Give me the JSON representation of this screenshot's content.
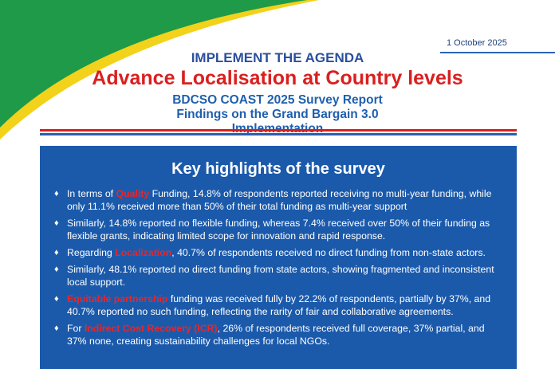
{
  "header": {
    "date": "1 October 2025",
    "kicker": "IMPLEMENT THE AGENDA",
    "title": "Advance Localisation at Country levels",
    "subtitle": "BDCSO COAST 2025 Survey Report Findings on the Grand Bargain 3.0 Implementation"
  },
  "highlights": {
    "title": "Key highlights of the survey",
    "items": [
      {
        "parts": [
          {
            "text": "In terms of "
          },
          {
            "text": "Quality",
            "emphasis": true
          },
          {
            "text": " Funding, 14.8% of respondents reported receiving no multi-year funding, while only 11.1% received more than 50% of their total funding as multi-year support"
          }
        ]
      },
      {
        "parts": [
          {
            "text": "Similarly, 14.8% reported no flexible funding, whereas 7.4% received over 50% of their funding as flexible grants, indicating limited scope for innovation and rapid response."
          }
        ]
      },
      {
        "parts": [
          {
            "text": "Regarding "
          },
          {
            "text": "Localization",
            "emphasis": true
          },
          {
            "text": ", 40.7% of respondents received no direct funding from non-state actors."
          }
        ]
      },
      {
        "parts": [
          {
            "text": "Similarly, 48.1% reported no direct funding from state actors, showing fragmented and inconsistent local support."
          }
        ]
      },
      {
        "parts": [
          {
            "text": "Equitable partnership",
            "emphasis": true
          },
          {
            "text": " funding was received fully by 22.2% of respondents, partially by 37%, and 40.7% reported no such funding, reflecting the rarity of fair and collaborative agreements."
          }
        ]
      },
      {
        "parts": [
          {
            "text": "For "
          },
          {
            "text": "Indirect Cost Recovery (ICR)",
            "emphasis": true
          },
          {
            "text": ", 26% of respondents received full coverage, 37% partial, and 37% none, creating sustainability challenges for local NGOs."
          }
        ]
      }
    ]
  }
}
